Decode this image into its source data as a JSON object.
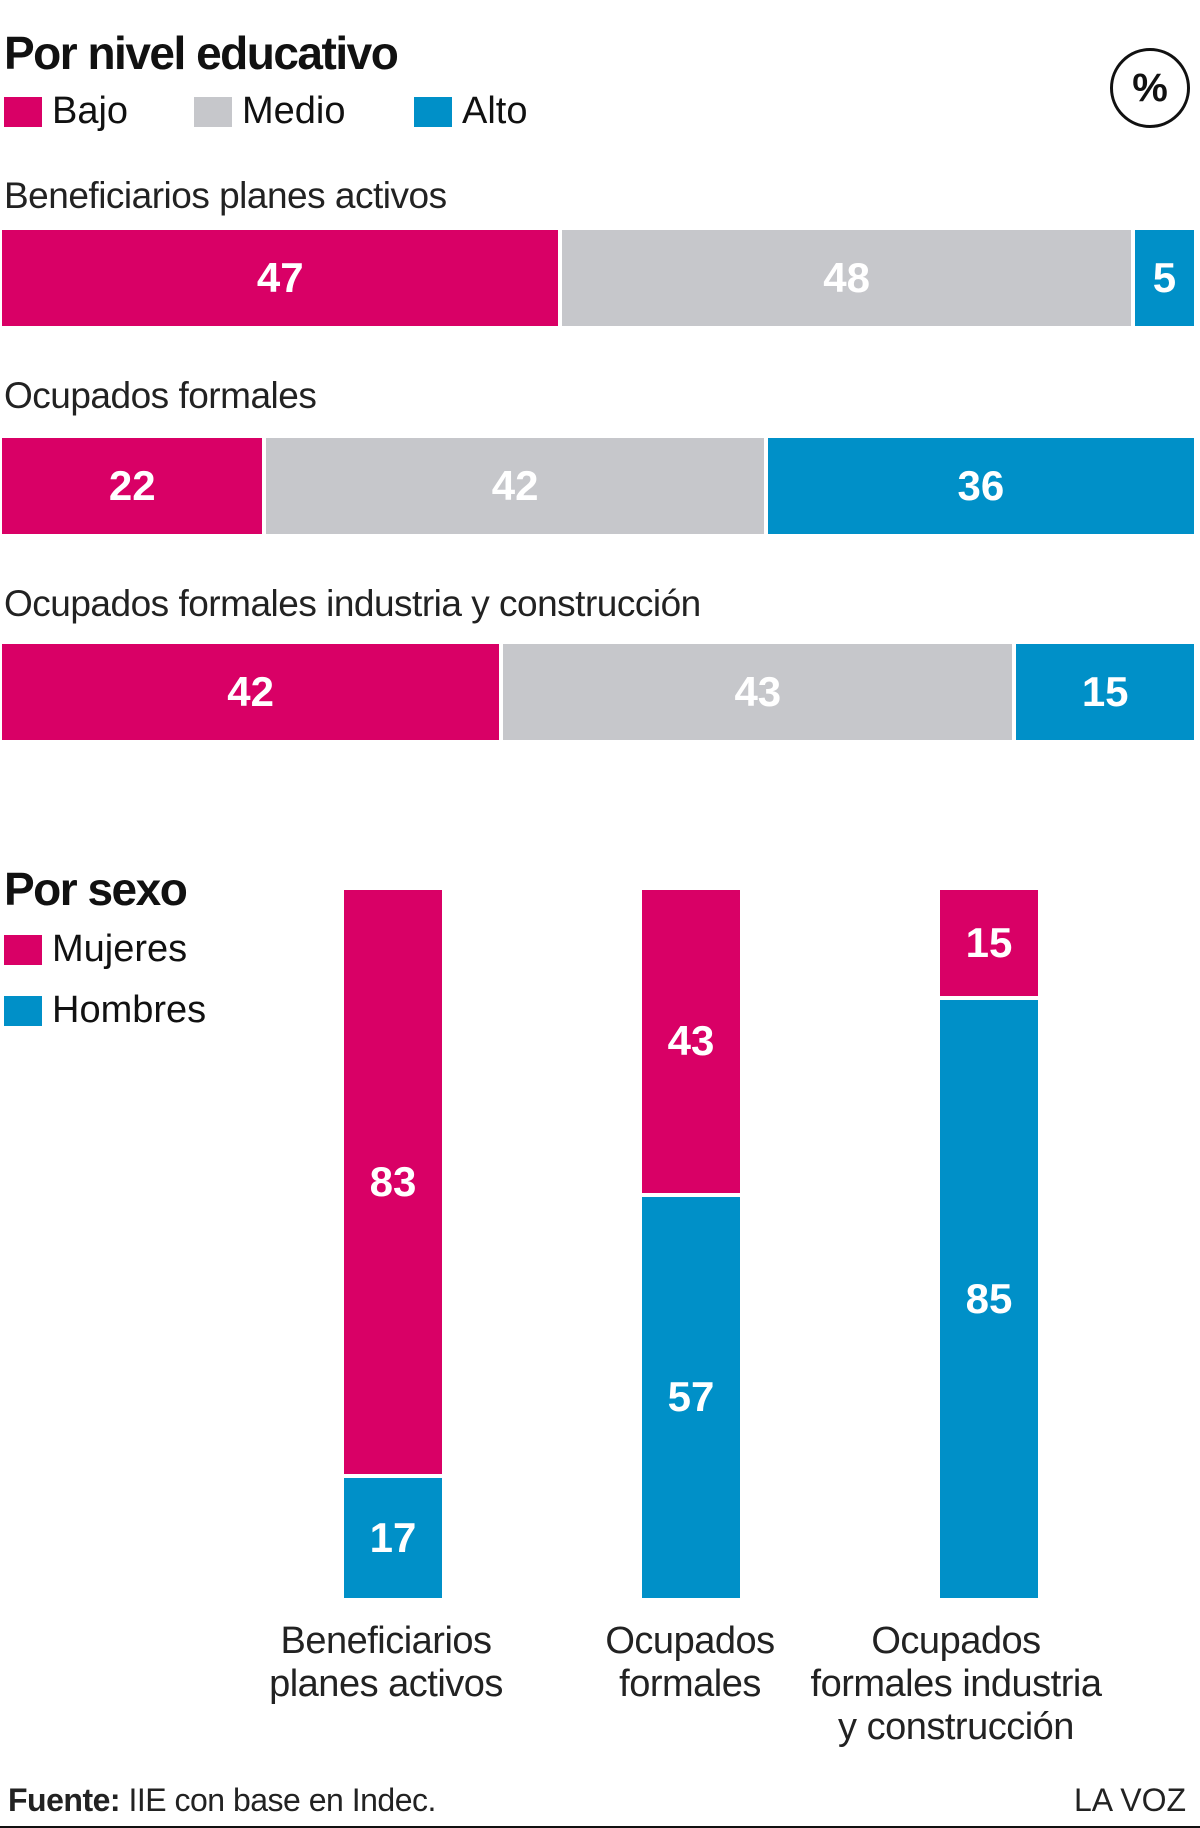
{
  "section1": {
    "title": "Por nivel educativo",
    "legend": [
      {
        "label": "Bajo",
        "color": "#d90066"
      },
      {
        "label": "Medio",
        "color": "#c6c7cb"
      },
      {
        "label": "Alto",
        "color": "#0090c8"
      }
    ],
    "unit_badge": "%"
  },
  "section2": {
    "title": "Por sexo",
    "legend": [
      {
        "label": "Mujeres",
        "color": "#d90066"
      },
      {
        "label": "Hombres",
        "color": "#0090c8"
      }
    ]
  },
  "chart_data": [
    {
      "type": "bar",
      "orientation": "horizontal",
      "stacked": true,
      "title": "Por nivel educativo",
      "categories": [
        "Beneficiarios planes activos",
        "Ocupados formales",
        "Ocupados formales industria y construcción"
      ],
      "series": [
        {
          "name": "Bajo",
          "color": "#d90066",
          "values": [
            47,
            22,
            42
          ]
        },
        {
          "name": "Medio",
          "color": "#c6c7cb",
          "values": [
            48,
            42,
            43
          ]
        },
        {
          "name": "Alto",
          "color": "#0090c8",
          "values": [
            5,
            36,
            15
          ]
        }
      ],
      "unit": "%"
    },
    {
      "type": "bar",
      "orientation": "vertical",
      "stacked": true,
      "title": "Por sexo",
      "categories": [
        "Beneficiarios planes activos",
        "Ocupados formales",
        "Ocupados formales industria y construcción"
      ],
      "category_label_lines": [
        [
          "Beneficiarios",
          "planes activos"
        ],
        [
          "Ocupados",
          "formales"
        ],
        [
          "Ocupados",
          "formales industria",
          "y construcción"
        ]
      ],
      "series": [
        {
          "name": "Mujeres",
          "color": "#d90066",
          "values": [
            83,
            43,
            15
          ]
        },
        {
          "name": "Hombres",
          "color": "#0090c8",
          "values": [
            17,
            57,
            85
          ]
        }
      ],
      "unit": "%"
    }
  ],
  "footer": {
    "source_label": "Fuente:",
    "source_text": "IIE con base en Indec.",
    "brand": "LA VOZ"
  }
}
